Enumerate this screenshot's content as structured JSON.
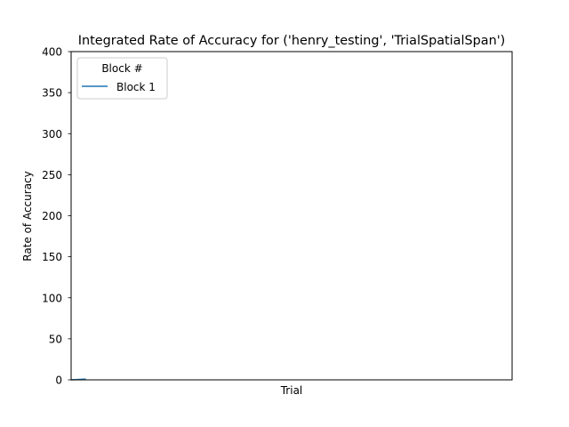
{
  "chart_data": {
    "type": "line",
    "title": "Integrated Rate of Accuracy for ('henry_testing', 'TrialSpatialSpan')",
    "xlabel": "Trial",
    "ylabel": "Rate of Accuracy",
    "ylim": [
      0,
      400
    ],
    "yticks": [
      "0",
      "50",
      "100",
      "150",
      "200",
      "250",
      "300",
      "350",
      "400"
    ],
    "xlim": [
      0,
      30
    ],
    "grid": false,
    "legend": {
      "title": "Block #",
      "placement": "top-left"
    },
    "series": [
      {
        "name": "Block 1",
        "color": "#1f77b4",
        "x": [
          0,
          1
        ],
        "y": [
          0,
          1
        ]
      }
    ]
  }
}
